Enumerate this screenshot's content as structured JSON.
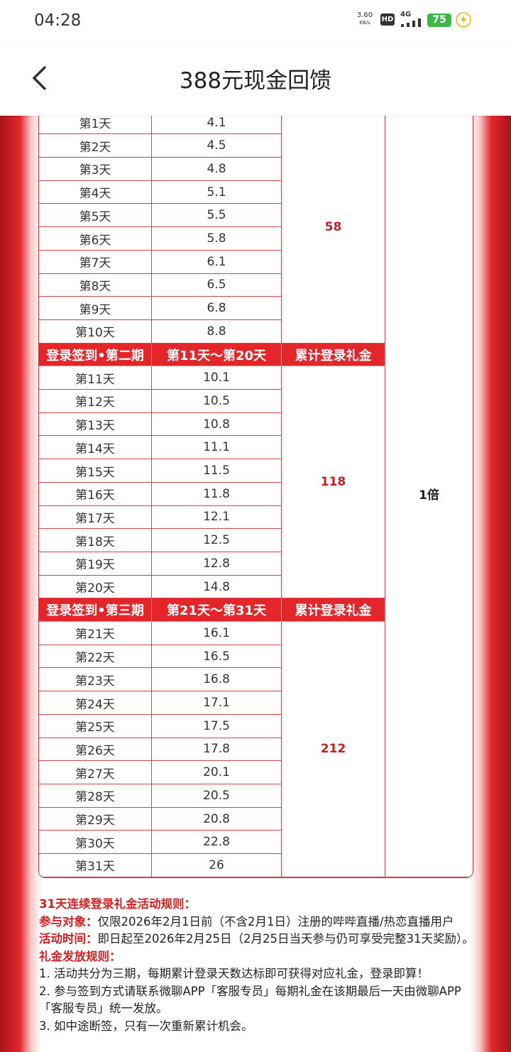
{
  "status_bar": {
    "time": "04:28",
    "net_speed": "3.60",
    "net_unit": "KB/s",
    "hd": "HD",
    "signal": "4G",
    "battery": "75"
  },
  "header": {
    "title": "388元现金回馈"
  },
  "table": {
    "sections": [
      {
        "rows": [
          [
            "第1天",
            "4.1"
          ],
          [
            "第2天",
            "4.5"
          ],
          [
            "第3天",
            "4.8"
          ],
          [
            "第4天",
            "5.1"
          ],
          [
            "第5天",
            "5.5"
          ],
          [
            "第6天",
            "5.8"
          ],
          [
            "第7天",
            "6.1"
          ],
          [
            "第8天",
            "6.5"
          ],
          [
            "第9天",
            "6.8"
          ],
          [
            "第10天",
            "8.8"
          ]
        ],
        "total": "58"
      },
      {
        "header": [
          "登录签到•第二期",
          "第11天～第20天",
          "累计登录礼金"
        ],
        "rows": [
          [
            "第11天",
            "10.1"
          ],
          [
            "第12天",
            "10.5"
          ],
          [
            "第13天",
            "10.8"
          ],
          [
            "第14天",
            "11.1"
          ],
          [
            "第15天",
            "11.5"
          ],
          [
            "第16天",
            "11.8"
          ],
          [
            "第17天",
            "12.1"
          ],
          [
            "第18天",
            "12.5"
          ],
          [
            "第19天",
            "12.8"
          ],
          [
            "第20天",
            "14.8"
          ]
        ],
        "total": "118"
      },
      {
        "header": [
          "登录签到•第三期",
          "第21天～第31天",
          "累计登录礼金"
        ],
        "rows": [
          [
            "第21天",
            "16.1"
          ],
          [
            "第22天",
            "16.5"
          ],
          [
            "第23天",
            "16.8"
          ],
          [
            "第24天",
            "17.1"
          ],
          [
            "第25天",
            "17.5"
          ],
          [
            "第26天",
            "17.8"
          ],
          [
            "第27天",
            "20.1"
          ],
          [
            "第28天",
            "20.5"
          ],
          [
            "第29天",
            "20.8"
          ],
          [
            "第30天",
            "22.8"
          ],
          [
            "第31天",
            "26"
          ]
        ],
        "total": "212"
      }
    ],
    "multiplier": "1倍"
  },
  "rules": {
    "title": "31天连续登录礼金活动规则：",
    "items": [
      {
        "label": "参与对象：",
        "text": "仅限2026年2月1日前（不含2月1日）注册的哔哔直播/热恋直播用户"
      },
      {
        "label": "活动时间：",
        "text": "即日起至2026年2月25日（2月25日当天参与仍可享受完整31天奖励）。"
      }
    ],
    "section_title": "礼金发放规则：",
    "list": [
      "1. 活动共分为三期，每期累计登录天数达标即可获得对应礼金，登录即算！",
      "2. 参与签到方式请联系微聊APP「客服专员」每期礼金在该期最后一天由微聊APP「客服专员」统一发放。",
      "3. 如中途断签，只有一次重新累计机会。"
    ]
  }
}
